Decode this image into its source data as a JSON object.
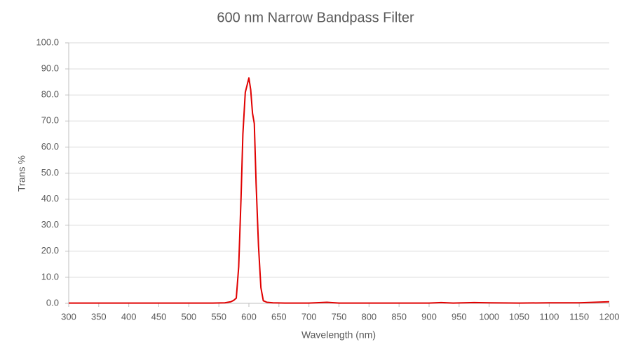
{
  "chart_data": {
    "type": "line",
    "title": "600 nm Narrow Bandpass Filter",
    "x_label": "Wavelength (nm)",
    "y_label": "Trans %",
    "x": [
      300,
      350,
      400,
      450,
      500,
      540,
      560,
      570,
      575,
      579,
      583,
      587,
      590,
      594,
      600,
      603,
      606,
      609,
      612,
      616,
      620,
      624,
      630,
      640,
      660,
      700,
      730,
      750,
      800,
      900,
      920,
      940,
      975,
      1000,
      1050,
      1100,
      1150,
      1200
    ],
    "values": [
      0.1,
      0.1,
      0.1,
      0.1,
      0.1,
      0.1,
      0.2,
      0.6,
      1.2,
      2,
      14,
      41,
      65,
      81,
      86.5,
      82,
      73,
      69,
      46,
      22,
      6,
      1,
      0.4,
      0.2,
      0.1,
      0.1,
      0.4,
      0.1,
      0.1,
      0.1,
      0.3,
      0.1,
      0.3,
      0.2,
      0.1,
      0.2,
      0.2,
      0.6
    ],
    "color": "#e00000",
    "xlim": [
      300,
      1200
    ],
    "xticks": [
      300,
      350,
      400,
      450,
      500,
      550,
      600,
      650,
      700,
      750,
      800,
      850,
      900,
      950,
      1000,
      1050,
      1100,
      1150,
      1200
    ],
    "ylim": [
      0,
      100
    ],
    "yticks": [
      {
        "value": 0,
        "label": "0.0"
      },
      {
        "value": 10,
        "label": "10.0"
      },
      {
        "value": 20,
        "label": "20.0"
      },
      {
        "value": 30,
        "label": "30.0"
      },
      {
        "value": 40,
        "label": "40.0"
      },
      {
        "value": 50,
        "label": "50.0"
      },
      {
        "value": 60,
        "label": "60.0"
      },
      {
        "value": 70,
        "label": "70.0"
      },
      {
        "value": 80,
        "label": "80.0"
      },
      {
        "value": 90,
        "label": "90.0"
      },
      {
        "value": 100,
        "label": "100.0"
      }
    ],
    "grid": true
  }
}
